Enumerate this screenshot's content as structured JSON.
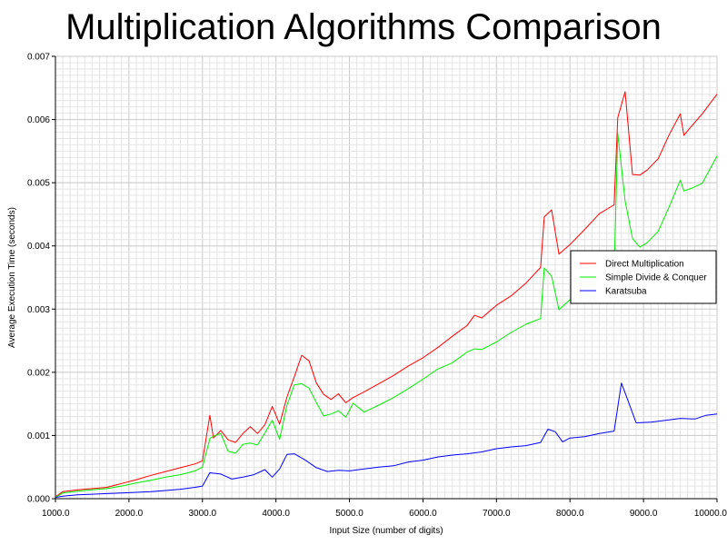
{
  "chart_data": {
    "type": "line",
    "title": "Multiplication Algorithms Comparison",
    "xlabel": "Input Size (number of digits)",
    "ylabel": "Average Execution Time (seconds)",
    "xlim": [
      1000,
      10000
    ],
    "ylim": [
      0,
      0.007
    ],
    "xticks": [
      1000,
      2000,
      3000,
      4000,
      5000,
      6000,
      7000,
      8000,
      9000,
      10000
    ],
    "xtick_labels": [
      "1000.0",
      "2000.0",
      "3000.0",
      "4000.0",
      "5000.0",
      "6000.0",
      "7000.0",
      "8000.0",
      "9000.0",
      "10000.0"
    ],
    "yticks": [
      0,
      0.001,
      0.002,
      0.003,
      0.004,
      0.005,
      0.006,
      0.007
    ],
    "ytick_labels": [
      "0.000",
      "0.001",
      "0.002",
      "0.003",
      "0.004",
      "0.005",
      "0.006",
      "0.007"
    ],
    "grid": true,
    "legend_position": "right",
    "series": [
      {
        "name": "Direct Multiplication",
        "color": "#ff0000",
        "x": [
          1000,
          1100,
          1300,
          1500,
          1700,
          1900,
          2100,
          2300,
          2500,
          2700,
          2900,
          3000,
          3100,
          3150,
          3250,
          3350,
          3450,
          3550,
          3650,
          3750,
          3850,
          3950,
          4050,
          4150,
          4250,
          4350,
          4450,
          4550,
          4650,
          4750,
          4850,
          4950,
          5050,
          5200,
          5400,
          5600,
          5800,
          6000,
          6200,
          6400,
          6600,
          6700,
          6800,
          7000,
          7200,
          7400,
          7600,
          7650,
          7750,
          7850,
          8000,
          8200,
          8400,
          8600,
          8650,
          8750,
          8850,
          8950,
          9050,
          9200,
          9350,
          9500,
          9550,
          9650,
          9800,
          10000
        ],
        "y": [
          3e-05,
          0.00011,
          0.00014,
          0.00016,
          0.00018,
          0.00024,
          0.0003,
          0.00037,
          0.00043,
          0.00049,
          0.00055,
          0.0006,
          0.00132,
          0.00096,
          0.00108,
          0.00093,
          0.00089,
          0.00103,
          0.00114,
          0.00103,
          0.00117,
          0.00146,
          0.00118,
          0.00161,
          0.00193,
          0.00227,
          0.00218,
          0.00183,
          0.00165,
          0.00157,
          0.00166,
          0.00152,
          0.0016,
          0.00169,
          0.00182,
          0.00195,
          0.0021,
          0.00223,
          0.00239,
          0.00257,
          0.00274,
          0.0029,
          0.00286,
          0.00306,
          0.00321,
          0.00341,
          0.00366,
          0.00446,
          0.00457,
          0.00387,
          0.00402,
          0.00426,
          0.00451,
          0.00465,
          0.00603,
          0.00644,
          0.00513,
          0.00512,
          0.0052,
          0.00538,
          0.00576,
          0.00609,
          0.00575,
          0.00589,
          0.00609,
          0.0064
        ]
      },
      {
        "name": "Simple Divide & Conquer",
        "color": "#00ee00",
        "x": [
          1000,
          1100,
          1300,
          1500,
          1700,
          1900,
          2100,
          2300,
          2500,
          2700,
          2900,
          3000,
          3100,
          3150,
          3250,
          3350,
          3450,
          3550,
          3650,
          3750,
          3850,
          3950,
          4050,
          4150,
          4250,
          4350,
          4450,
          4550,
          4650,
          4750,
          4850,
          4950,
          5050,
          5200,
          5400,
          5600,
          5800,
          6000,
          6200,
          6400,
          6600,
          6700,
          6800,
          7000,
          7200,
          7400,
          7600,
          7650,
          7750,
          7850,
          8000,
          8200,
          8400,
          8600,
          8650,
          8750,
          8850,
          8950,
          9050,
          9200,
          9350,
          9500,
          9550,
          9650,
          9800,
          10000
        ],
        "y": [
          2e-05,
          9e-05,
          0.00012,
          0.00014,
          0.00016,
          0.0002,
          0.00025,
          0.00029,
          0.00034,
          0.00038,
          0.00044,
          0.0005,
          0.00095,
          0.00099,
          0.00103,
          0.00075,
          0.00072,
          0.00086,
          0.00088,
          0.00085,
          0.00104,
          0.00124,
          0.00094,
          0.00148,
          0.0018,
          0.00182,
          0.00175,
          0.00152,
          0.00131,
          0.00134,
          0.00139,
          0.00129,
          0.00151,
          0.00137,
          0.00148,
          0.0016,
          0.00174,
          0.00189,
          0.00205,
          0.00215,
          0.00232,
          0.00237,
          0.00236,
          0.00248,
          0.00263,
          0.00276,
          0.00285,
          0.00365,
          0.00352,
          0.00299,
          0.00315,
          0.00329,
          0.00347,
          0.00356,
          0.00578,
          0.00471,
          0.00412,
          0.00398,
          0.00405,
          0.00423,
          0.00462,
          0.00504,
          0.00487,
          0.00491,
          0.00499,
          0.00542
        ]
      },
      {
        "name": "Karatsuba",
        "color": "#0000ff",
        "x": [
          1000,
          1100,
          1300,
          1500,
          1700,
          1900,
          2100,
          2300,
          2500,
          2700,
          2900,
          3000,
          3100,
          3250,
          3400,
          3550,
          3700,
          3850,
          3950,
          4050,
          4150,
          4250,
          4400,
          4550,
          4700,
          4850,
          5000,
          5200,
          5400,
          5600,
          5800,
          6000,
          6200,
          6400,
          6600,
          6800,
          7000,
          7200,
          7400,
          7600,
          7700,
          7800,
          7900,
          8000,
          8200,
          8400,
          8600,
          8700,
          8800,
          8900,
          9100,
          9300,
          9500,
          9700,
          9850,
          10000
        ],
        "y": [
          2e-05,
          4e-05,
          6e-05,
          7e-05,
          8e-05,
          9e-05,
          0.0001,
          0.00011,
          0.00013,
          0.00015,
          0.00018,
          0.0002,
          0.00041,
          0.00039,
          0.00031,
          0.00034,
          0.00038,
          0.00046,
          0.00034,
          0.00047,
          0.0007,
          0.00071,
          0.00061,
          0.00049,
          0.00043,
          0.00045,
          0.00044,
          0.00047,
          0.0005,
          0.00052,
          0.00058,
          0.00061,
          0.00066,
          0.00069,
          0.00071,
          0.00074,
          0.00079,
          0.00082,
          0.00084,
          0.00089,
          0.0011,
          0.00106,
          0.0009,
          0.00096,
          0.00098,
          0.00103,
          0.00107,
          0.00183,
          0.00152,
          0.0012,
          0.00121,
          0.00124,
          0.00127,
          0.00126,
          0.00132,
          0.00134
        ]
      }
    ]
  }
}
